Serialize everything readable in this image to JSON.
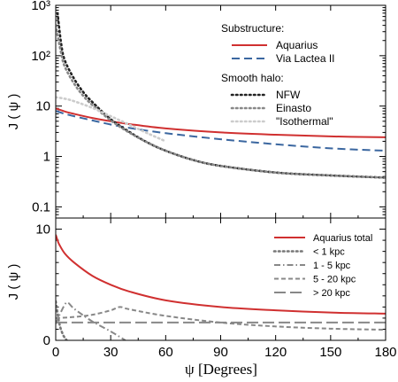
{
  "chart_data": [
    {
      "type": "line",
      "panel": "top",
      "title": "",
      "xlabel": "",
      "ylabel": "J ( ψ )",
      "yscale": "log",
      "xlim": [
        0,
        180
      ],
      "ylim": [
        0.06,
        1000
      ],
      "x_ticks": [
        0,
        30,
        60,
        90,
        120,
        150,
        180
      ],
      "y_tick_labels": [
        "10³",
        "10²",
        "10",
        "1",
        "0.1"
      ],
      "y_tick_values": [
        1000,
        100,
        10,
        1,
        0.1
      ],
      "legend_position": "top-right",
      "legend_groups": [
        {
          "title": "Substructure:",
          "entries": [
            "Aquarius",
            "Via Lactea II"
          ]
        },
        {
          "title": "Smooth halo:",
          "entries": [
            "NFW",
            "Einasto",
            "\"Isothermal\""
          ]
        }
      ],
      "series": [
        {
          "name": "Aquarius",
          "color": "#d03030",
          "style": "solid",
          "x": [
            0,
            5,
            10,
            20,
            30,
            40,
            60,
            90,
            120,
            150,
            180
          ],
          "y": [
            9.0,
            7.8,
            7.0,
            5.8,
            5.0,
            4.4,
            3.6,
            3.0,
            2.7,
            2.5,
            2.4
          ]
        },
        {
          "name": "Via Lactea II",
          "color": "#3b67a0",
          "style": "dashed",
          "x": [
            0,
            5,
            10,
            20,
            30,
            40,
            60,
            90,
            120,
            150,
            180
          ],
          "y": [
            8.0,
            7.0,
            6.3,
            5.2,
            4.3,
            3.7,
            2.9,
            2.2,
            1.75,
            1.45,
            1.3
          ]
        },
        {
          "name": "NFW",
          "color": "#222222",
          "style": "dotted",
          "x": [
            1,
            3,
            5,
            10,
            15,
            20,
            30,
            40,
            50,
            60,
            75,
            90,
            120,
            150,
            180
          ],
          "y": [
            700,
            170,
            80,
            35,
            19,
            12,
            5.5,
            3.1,
            1.9,
            1.3,
            0.85,
            0.65,
            0.48,
            0.42,
            0.38
          ]
        },
        {
          "name": "Einasto",
          "color": "#888888",
          "style": "dotted",
          "x": [
            0,
            3,
            5,
            10,
            15,
            20,
            30,
            40,
            50,
            60,
            75,
            90,
            120,
            150,
            180
          ],
          "y": [
            400,
            110,
            60,
            28,
            16,
            10.5,
            5.2,
            3.0,
            1.9,
            1.3,
            0.85,
            0.65,
            0.48,
            0.42,
            0.38
          ]
        },
        {
          "name": "\"Isothermal\"",
          "color": "#cccccc",
          "style": "dotted",
          "x": [
            0,
            5,
            10,
            20,
            30,
            40,
            50,
            60
          ],
          "y": [
            15,
            14,
            12.5,
            9.2,
            6.3,
            4.3,
            2.9,
            2.0
          ]
        }
      ]
    },
    {
      "type": "line",
      "panel": "bottom",
      "title": "",
      "xlabel": "ψ [Degrees]",
      "ylabel": "J ( ψ )",
      "yscale": "linear",
      "xlim": [
        0,
        180
      ],
      "ylim": [
        0,
        11
      ],
      "x_ticks": [
        0,
        30,
        60,
        90,
        120,
        150,
        180
      ],
      "y_ticks": [
        0,
        10
      ],
      "legend_position": "top-right",
      "series": [
        {
          "name": "Aquarius total",
          "color": "#d03030",
          "style": "solid",
          "x": [
            0,
            1,
            2,
            5,
            10,
            20,
            30,
            40,
            60,
            90,
            120,
            150,
            180
          ],
          "y": [
            9.5,
            9.0,
            8.6,
            7.8,
            7.0,
            5.8,
            5.0,
            4.4,
            3.6,
            3.0,
            2.7,
            2.5,
            2.4
          ]
        },
        {
          "name": "< 1 kpc",
          "color": "#777777",
          "style": "dotted",
          "x": [
            0,
            2,
            4,
            6
          ],
          "y": [
            3.5,
            1.5,
            0.5,
            0.0
          ]
        },
        {
          "name": "1 - 5 kpc",
          "color": "#888888",
          "style": "dashdot",
          "x": [
            0,
            3,
            6,
            9,
            12,
            20,
            30,
            38
          ],
          "y": [
            1.5,
            2.6,
            3.4,
            3.0,
            2.6,
            1.7,
            0.8,
            0.0
          ]
        },
        {
          "name": "5 - 20 kpc",
          "color": "#888888",
          "style": "shortdash",
          "x": [
            0,
            10,
            20,
            30,
            35,
            40,
            60,
            90,
            120,
            150,
            180
          ],
          "y": [
            2.0,
            2.1,
            2.3,
            2.7,
            3.0,
            2.8,
            2.2,
            1.6,
            1.25,
            1.05,
            0.95
          ]
        },
        {
          "name": "> 20 kpc",
          "color": "#888888",
          "style": "longdash",
          "x": [
            0,
            30,
            60,
            90,
            120,
            150,
            180
          ],
          "y": [
            1.6,
            1.6,
            1.6,
            1.6,
            1.6,
            1.6,
            1.6
          ]
        }
      ],
      "legend_entries": [
        "Aquarius total",
        "< 1 kpc",
        "1 - 5 kpc",
        "5 - 20 kpc",
        "> 20 kpc"
      ]
    }
  ]
}
